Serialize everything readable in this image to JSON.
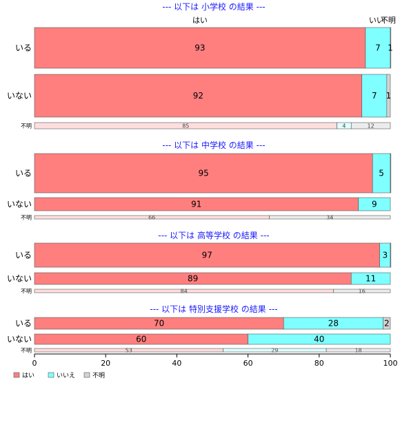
{
  "chart_data": {
    "type": "bar",
    "orientation": "horizontal-stacked-100",
    "column_headers": {
      "yes": "はい",
      "no": "いい",
      "unknown": "不明"
    },
    "xlim": [
      0,
      100
    ],
    "x_ticks": [
      "0",
      "20",
      "40",
      "60",
      "80",
      "100"
    ],
    "series": [
      {
        "name": "はい",
        "color": "#ff7f7f"
      },
      {
        "name": "いいえ",
        "color": "#7fffff"
      },
      {
        "name": "不明",
        "color": "#d3d3d3"
      }
    ],
    "legend_position": "bottom-left",
    "panels": [
      {
        "title": "--- 以下は 小学校 の結果 ---",
        "rows": [
          {
            "label": "いる",
            "values": [
              93,
              7,
              1
            ],
            "labels": [
              "93",
              "7",
              "1"
            ],
            "small": false
          },
          {
            "label": "いない",
            "values": [
              92,
              7,
              1
            ],
            "labels": [
              "92",
              "7",
              "1"
            ],
            "small": false
          },
          {
            "label": "不明",
            "values": [
              85,
              4,
              12
            ],
            "labels": [
              "85",
              "4",
              "12"
            ],
            "small": true
          }
        ]
      },
      {
        "title": "--- 以下は 中学校 の結果 ---",
        "rows": [
          {
            "label": "いる",
            "values": [
              95,
              5,
              0.5
            ],
            "labels": [
              "95",
              "5",
              ""
            ],
            "small": false
          },
          {
            "label": "いない",
            "values": [
              91,
              9,
              0
            ],
            "labels": [
              "91",
              "9",
              ""
            ],
            "small": false
          },
          {
            "label": "不明",
            "values": [
              66,
              0,
              34
            ],
            "labels": [
              "66",
              "",
              "34"
            ],
            "small": true
          }
        ]
      },
      {
        "title": "--- 以下は 高等学校 の結果 ---",
        "rows": [
          {
            "label": "いる",
            "values": [
              97,
              3,
              0.5
            ],
            "labels": [
              "97",
              "3",
              ""
            ],
            "small": false
          },
          {
            "label": "いない",
            "values": [
              89,
              11,
              0
            ],
            "labels": [
              "89",
              "11",
              ""
            ],
            "small": false
          },
          {
            "label": "不明",
            "values": [
              84,
              0,
              16
            ],
            "labels": [
              "84",
              "",
              "16"
            ],
            "small": true
          }
        ]
      },
      {
        "title": "--- 以下は 特別支援学校 の結果 ---",
        "rows": [
          {
            "label": "いる",
            "values": [
              70,
              28,
              2
            ],
            "labels": [
              "70",
              "28",
              "2"
            ],
            "small": false
          },
          {
            "label": "いない",
            "values": [
              60,
              40,
              0
            ],
            "labels": [
              "60",
              "40",
              ""
            ],
            "small": false
          },
          {
            "label": "不明",
            "values": [
              53,
              29,
              18
            ],
            "labels": [
              "53",
              "29",
              "18"
            ],
            "small": true
          }
        ]
      }
    ]
  }
}
